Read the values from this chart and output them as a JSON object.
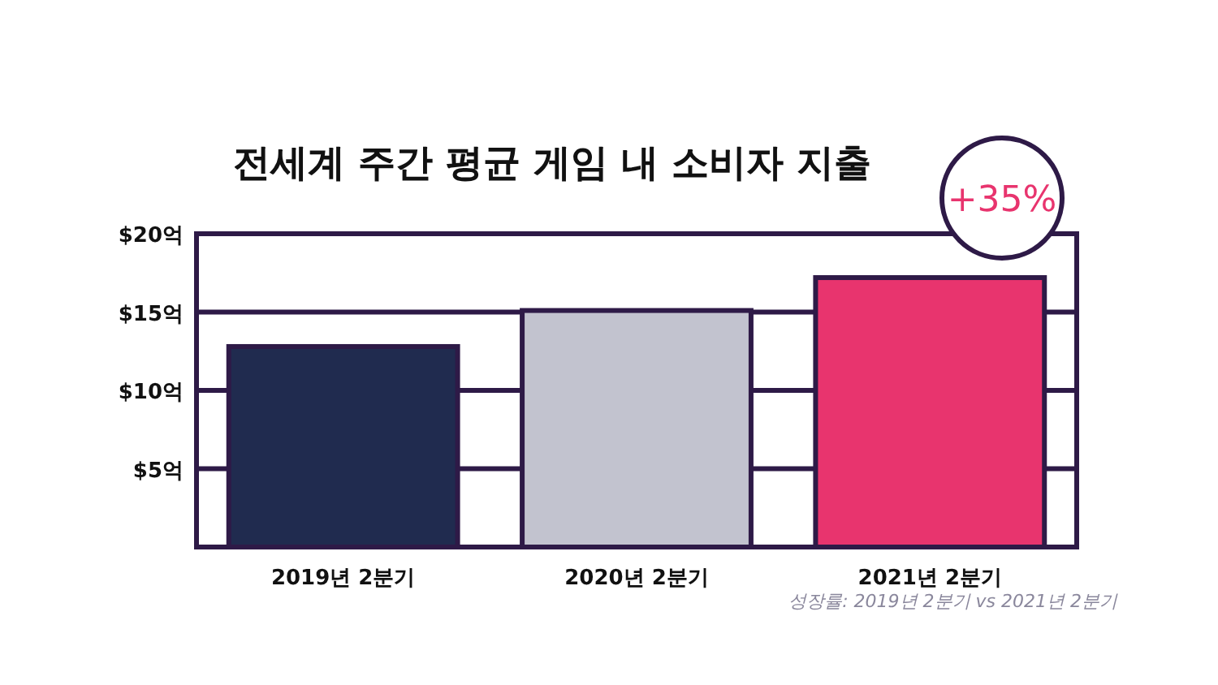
{
  "chart_data": {
    "type": "bar",
    "title": "전세계 주간 평균 게임 내 소비자 지출",
    "categories": [
      "2019년 2분기",
      "2020년 2분기",
      "2021년 2분기"
    ],
    "values": [
      12.8,
      15.1,
      17.2
    ],
    "colors": [
      "#202b4f",
      "#c2c3cf",
      "#e8346e"
    ],
    "ylim": [
      0,
      20
    ],
    "yticks": [
      {
        "value": 5,
        "label": "$5억"
      },
      {
        "value": 10,
        "label": "$10억"
      },
      {
        "value": 15,
        "label": "$15억"
      },
      {
        "value": 20,
        "label": "$20억"
      }
    ],
    "grid": "y",
    "annotations": [
      "+35%",
      "성장률: 2019년 2분기 vs 2021년 2분기"
    ]
  }
}
